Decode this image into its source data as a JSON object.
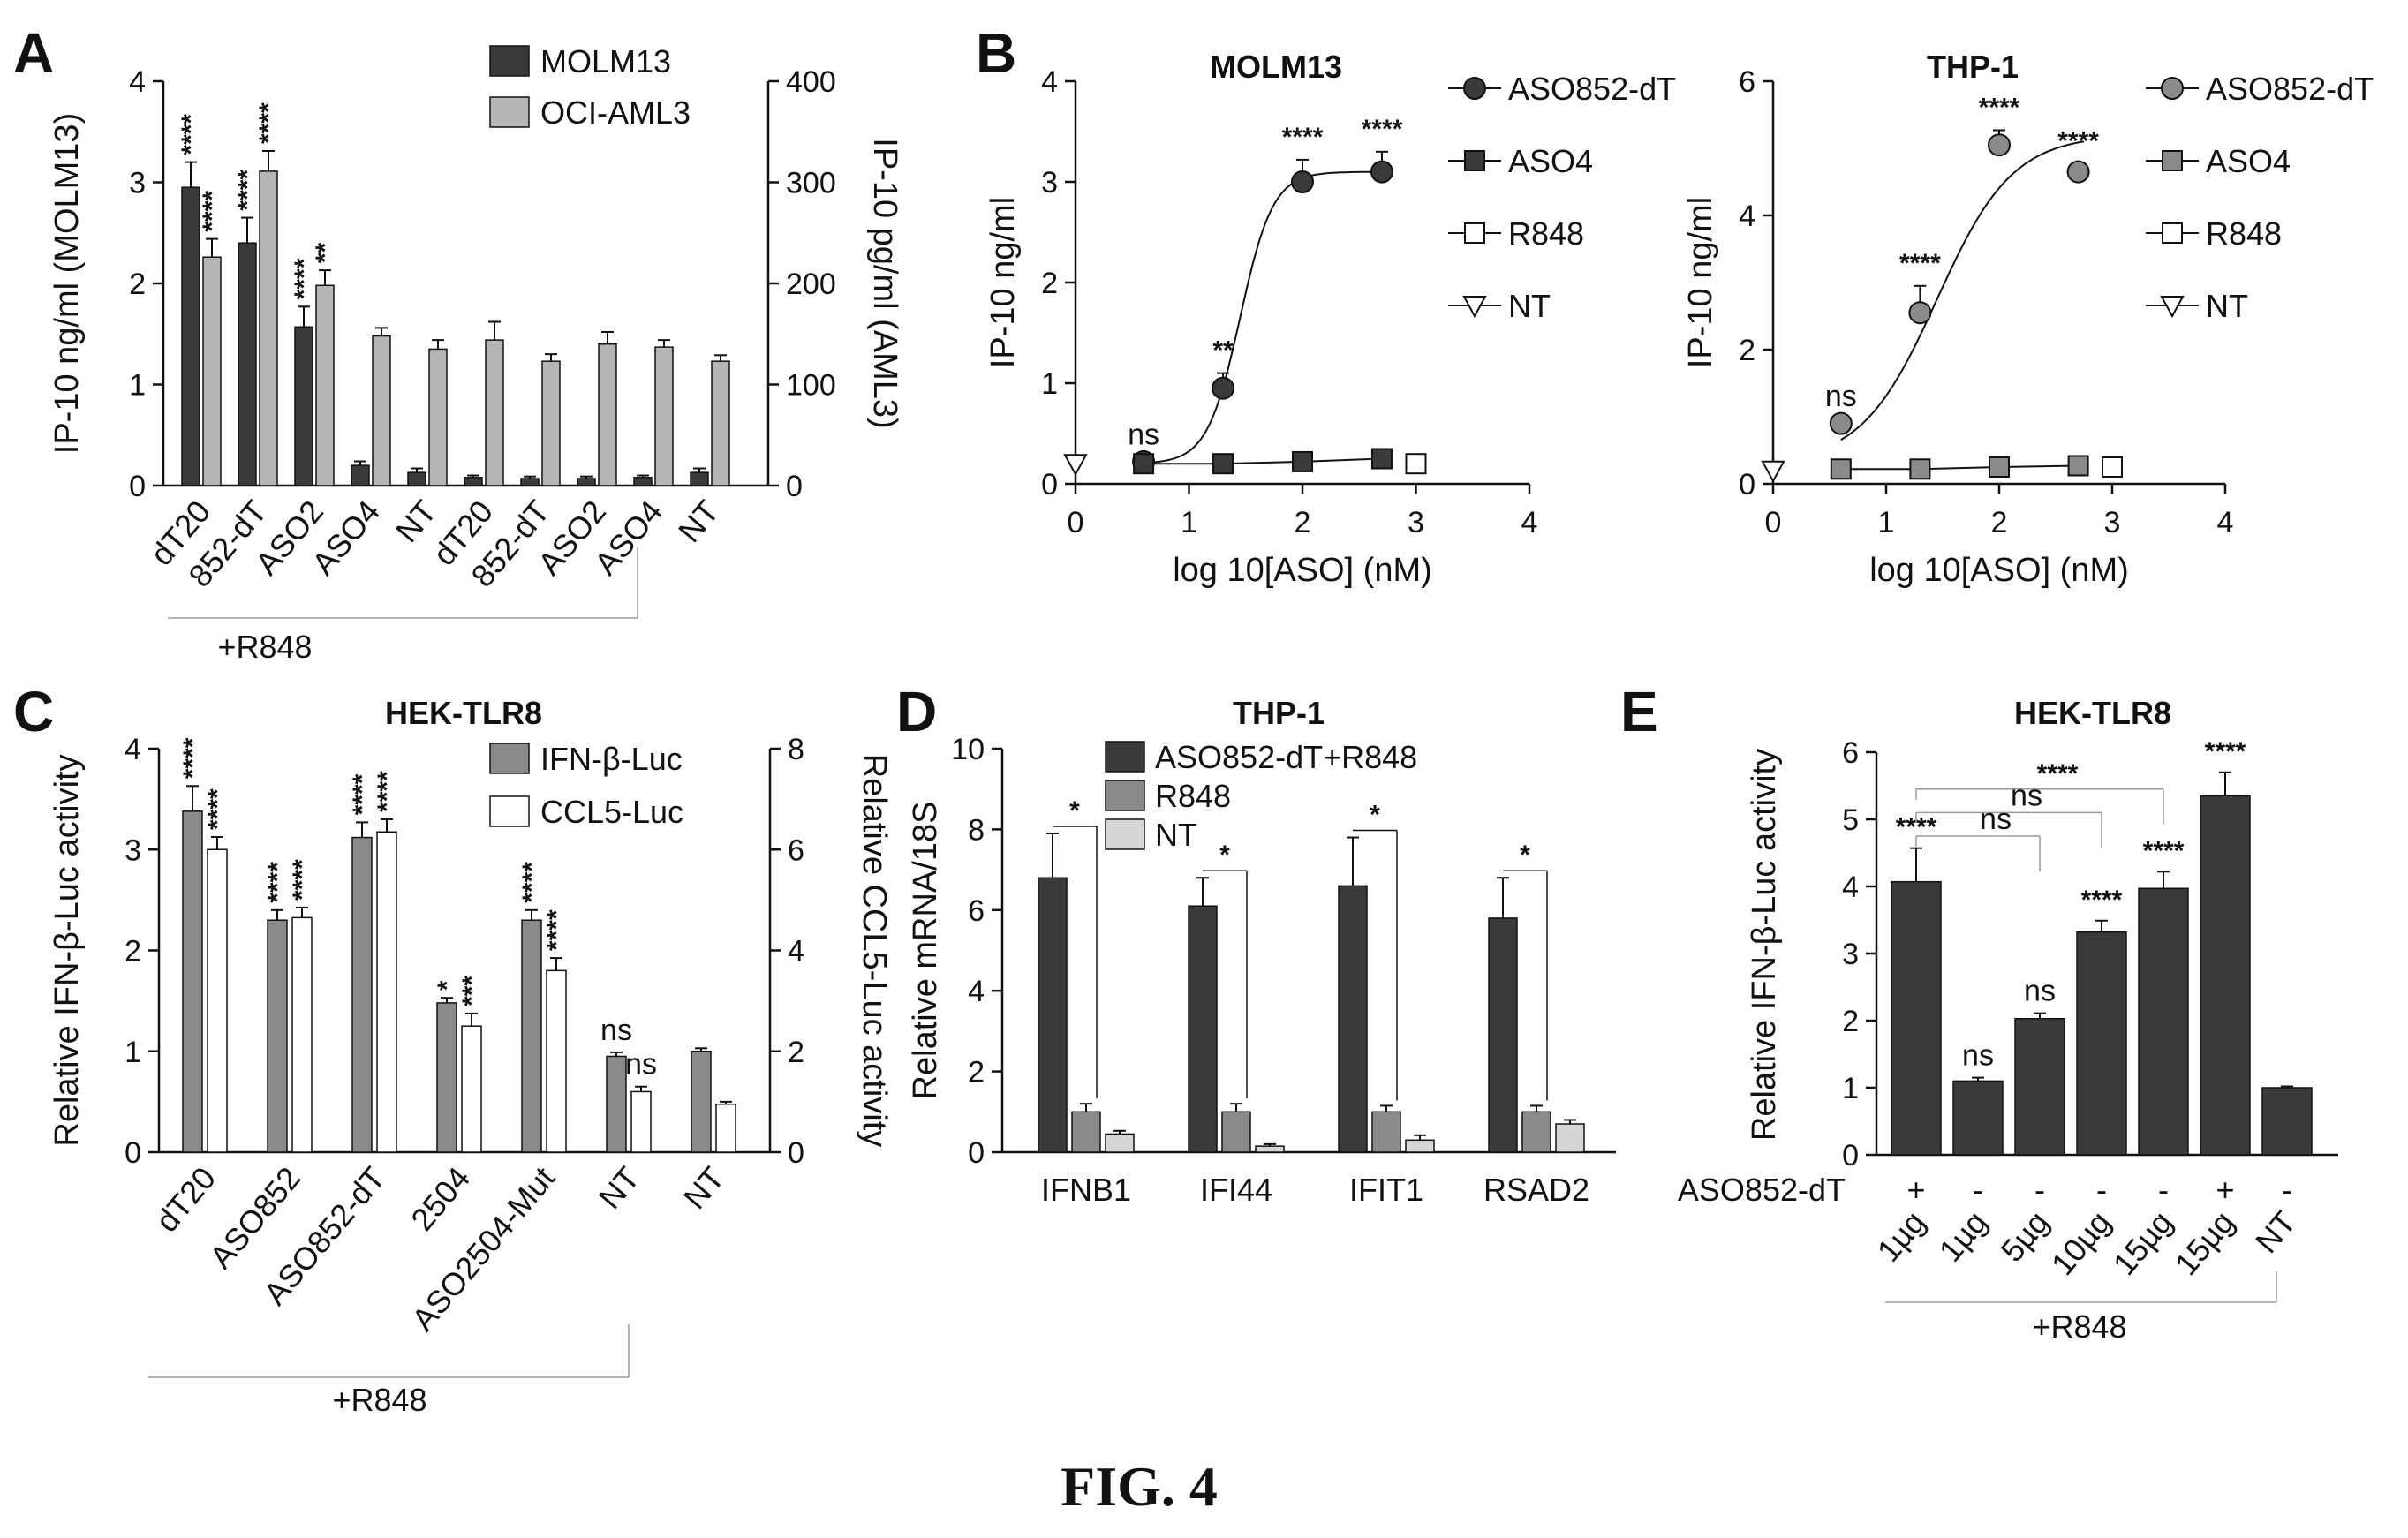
{
  "figure_caption": "FIG. 4",
  "colors": {
    "dark": "#3a3a3a",
    "mid": "#8a8a8a",
    "light": "#b5b5b5",
    "lighter": "#d6d6d6",
    "white": "#ffffff",
    "axis": "#111111"
  },
  "chart_data": [
    {
      "panel": "A",
      "type": "bar",
      "title": "",
      "ylabel": "IP-10 ng/ml (MOLM13)",
      "ylabel_right": "IP-10 pg/ml (AML3)",
      "ylim": [
        0,
        4
      ],
      "ylim_right": [
        0,
        400
      ],
      "yticks": [
        0,
        1,
        2,
        3,
        4
      ],
      "yticks_right": [
        0,
        100,
        200,
        300,
        400
      ],
      "categories": [
        "dT20",
        "852-dT",
        "ASO2",
        "ASO4",
        "NT",
        "dT20",
        "852-dT",
        "ASO2",
        "ASO4",
        "NT"
      ],
      "series": [
        {
          "name": "MOLM13",
          "color": "#3a3a3a",
          "values": [
            2.95,
            2.4,
            1.57,
            0.2,
            0.13,
            0.08,
            0.07,
            0.07,
            0.08,
            0.13
          ],
          "errors": [
            0.25,
            0.25,
            0.2,
            0.04,
            0.04,
            0.02,
            0.02,
            0.02,
            0.02,
            0.04
          ],
          "sig": [
            "****",
            "****",
            "****",
            "",
            "",
            "",
            "",
            "",
            "",
            ""
          ]
        },
        {
          "name": "OCI-AML3",
          "color": "#b5b5b5",
          "axis": "right",
          "values": [
            226,
            311,
            198,
            148,
            135,
            144,
            123,
            140,
            137,
            123
          ],
          "errors": [
            18,
            20,
            15,
            8,
            9,
            18,
            7,
            12,
            7,
            6
          ],
          "sig": [
            "****",
            "****",
            "**",
            "",
            "",
            "",
            "",
            "",
            "",
            ""
          ]
        }
      ],
      "group_label": "+R848",
      "legend_position": "top-right"
    },
    {
      "panel": "B",
      "type": "scatter",
      "title": "MOLM13",
      "xlabel": "log 10[ASO] (nM)",
      "ylabel": "IP-10 ng/ml",
      "xlim": [
        0,
        4
      ],
      "ylim": [
        0,
        4
      ],
      "xticks": [
        0,
        1,
        2,
        3,
        4
      ],
      "yticks": [
        0,
        1,
        2,
        3,
        4
      ],
      "series": [
        {
          "name": "ASO852-dT",
          "marker": "circle",
          "fill": "#3a3a3a",
          "x": [
            0.6,
            1.3,
            2.0,
            2.7
          ],
          "y": [
            0.22,
            0.95,
            3.0,
            3.1
          ],
          "errors": [
            0.03,
            0.15,
            0.22,
            0.2
          ],
          "sig": [
            "ns",
            "**",
            "****",
            "****"
          ],
          "fit": {
            "bottom": 0.2,
            "top": 3.1,
            "ec50": 1.45,
            "hill": 3.0
          }
        },
        {
          "name": "ASO4",
          "marker": "square",
          "fill": "#3a3a3a",
          "x": [
            0.6,
            1.3,
            2.0,
            2.7
          ],
          "y": [
            0.2,
            0.2,
            0.22,
            0.25
          ],
          "errors": [
            0.02,
            0.02,
            0.03,
            0.03
          ],
          "sig": [
            "",
            "",
            "",
            ""
          ]
        },
        {
          "name": "R848",
          "marker": "square",
          "fill": "#ffffff",
          "x": [
            3.0
          ],
          "y": [
            0.2
          ],
          "errors": [
            0.02
          ],
          "sig": [
            ""
          ]
        },
        {
          "name": "NT",
          "marker": "triangle-down",
          "fill": "#ffffff",
          "x": [
            0.0
          ],
          "y": [
            0.2
          ],
          "errors": [
            0
          ],
          "sig": [
            ""
          ]
        }
      ],
      "legend_position": "right"
    },
    {
      "panel": "B",
      "type": "scatter",
      "title": "THP-1",
      "xlabel": "log 10[ASO] (nM)",
      "ylabel": "IP-10 ng/ml",
      "xlim": [
        0,
        4
      ],
      "ylim": [
        0,
        6
      ],
      "xticks": [
        0,
        1,
        2,
        3,
        4
      ],
      "yticks": [
        0,
        2,
        4,
        6
      ],
      "series": [
        {
          "name": "ASO852-dT",
          "marker": "circle",
          "fill": "#8a8a8a",
          "x": [
            0.6,
            1.3,
            2.0,
            2.7
          ],
          "y": [
            0.9,
            2.55,
            5.05,
            4.65
          ],
          "errors": [
            0.05,
            0.4,
            0.22,
            0.12
          ],
          "sig": [
            "ns",
            "****",
            "****",
            "****"
          ],
          "fit": {
            "bottom": 0.3,
            "top": 5.2,
            "ec50": 1.45,
            "hill": 1.3
          }
        },
        {
          "name": "ASO4",
          "marker": "square",
          "fill": "#8a8a8a",
          "x": [
            0.6,
            1.3,
            2.0,
            2.7
          ],
          "y": [
            0.22,
            0.22,
            0.25,
            0.27
          ],
          "errors": [
            0.02,
            0.02,
            0.03,
            0.03
          ],
          "sig": [
            "",
            "",
            "",
            ""
          ]
        },
        {
          "name": "R848",
          "marker": "square",
          "fill": "#ffffff",
          "x": [
            3.0
          ],
          "y": [
            0.25
          ],
          "errors": [
            0.02
          ],
          "sig": [
            ""
          ]
        },
        {
          "name": "NT",
          "marker": "triangle-down",
          "fill": "#ffffff",
          "x": [
            0.0
          ],
          "y": [
            0.2
          ],
          "errors": [
            0
          ],
          "sig": [
            ""
          ]
        }
      ],
      "legend_position": "right"
    },
    {
      "panel": "C",
      "type": "bar",
      "title": "HEK-TLR8",
      "ylabel": "Relative IFN-β-Luc activity",
      "ylabel_right": "Relative CCL5-Luc activity",
      "ylim": [
        0,
        4
      ],
      "ylim_right": [
        0,
        8
      ],
      "yticks": [
        0,
        1,
        2,
        3,
        4
      ],
      "yticks_right": [
        0,
        2,
        4,
        6,
        8
      ],
      "categories": [
        "dT20",
        "ASO852",
        "ASO852-dT",
        "2504",
        "ASO2504-Mut",
        "NT",
        "NT"
      ],
      "series": [
        {
          "name": "IFN-β-Luc",
          "color": "#8a8a8a",
          "values": [
            3.38,
            2.3,
            3.12,
            1.48,
            2.3,
            0.95,
            1.0
          ],
          "errors": [
            0.25,
            0.1,
            0.15,
            0.05,
            0.1,
            0.04,
            0.03
          ],
          "sig": [
            "****",
            "****",
            "****",
            "*",
            "****",
            "ns",
            ""
          ]
        },
        {
          "name": "CCL5-Luc",
          "color": "#ffffff",
          "axis": "right",
          "values": [
            6.0,
            4.65,
            6.35,
            2.5,
            3.6,
            1.2,
            0.95
          ],
          "errors": [
            0.25,
            0.2,
            0.25,
            0.25,
            0.25,
            0.1,
            0.05
          ],
          "sig": [
            "****",
            "****",
            "****",
            "***",
            "****",
            "ns",
            ""
          ]
        }
      ],
      "group_label": "+R848",
      "legend_position": "top-right"
    },
    {
      "panel": "D",
      "type": "bar",
      "title": "THP-1",
      "ylabel": "Relative mRNA/18S",
      "ylim": [
        0,
        10
      ],
      "yticks": [
        0,
        2,
        4,
        6,
        8,
        10
      ],
      "categories": [
        "IFNB1",
        "IFI44",
        "IFIT1",
        "RSAD2"
      ],
      "series": [
        {
          "name": "ASO852-dT+R848",
          "color": "#3a3a3a",
          "values": [
            6.8,
            6.1,
            6.6,
            5.8
          ],
          "errors": [
            1.1,
            0.7,
            1.2,
            1.0
          ]
        },
        {
          "name": "R848",
          "color": "#8a8a8a",
          "values": [
            1.0,
            1.0,
            1.0,
            1.0
          ],
          "errors": [
            0.2,
            0.2,
            0.15,
            0.15
          ]
        },
        {
          "name": "NT",
          "color": "#d6d6d6",
          "values": [
            0.45,
            0.15,
            0.3,
            0.7
          ],
          "errors": [
            0.08,
            0.05,
            0.12,
            0.1
          ]
        }
      ],
      "sig_brackets": [
        "*",
        "*",
        "*",
        "*"
      ],
      "legend_position": "top-right"
    },
    {
      "panel": "E",
      "type": "bar",
      "title": "HEK-TLR8",
      "ylabel": "Relative IFN-β-Luc activity",
      "ylim": [
        0,
        6
      ],
      "yticks": [
        0,
        1,
        2,
        3,
        4,
        5,
        6
      ],
      "row_label": "ASO852-dT",
      "aso_row": [
        "+",
        "-",
        "-",
        "-",
        "-",
        "+",
        "-"
      ],
      "categories": [
        "1µg",
        "1µg",
        "5µg",
        "10µg",
        "15µg",
        "15µg",
        "NT"
      ],
      "values": [
        4.07,
        1.1,
        2.03,
        3.32,
        3.97,
        5.35,
        1.0
      ],
      "errors": [
        0.5,
        0.05,
        0.08,
        0.17,
        0.25,
        0.35,
        0.02
      ],
      "sig": [
        "****",
        "ns",
        "ns",
        "****",
        "****",
        "****",
        ""
      ],
      "brackets": [
        "****",
        "ns",
        "ns"
      ],
      "group_label": "+R848"
    }
  ]
}
